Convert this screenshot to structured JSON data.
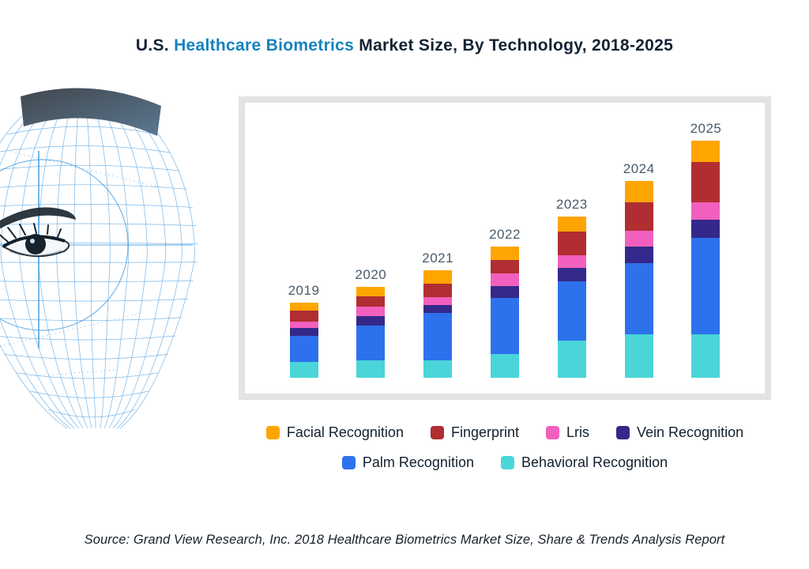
{
  "title": {
    "prefix": "U.S. ",
    "highlight": "Healthcare Biometrics",
    "suffix": " Market Size, By Technology, 2018-2025"
  },
  "source": {
    "text": "Source: Grand View Research, Inc. 2018 Healthcare Biometrics Market Size, Share & Trends Analysis Report"
  },
  "illustration": {
    "name": "biometric-face-wireframe",
    "band_color_left": "#40474E",
    "band_color_right": "#5B7891",
    "mesh_color": "#55A4E4",
    "scan_color": "#3D9BE0"
  },
  "colors": {
    "title_accent": "#1583BD",
    "title_text": "#132234",
    "year_label": "#4A5A6B",
    "panel_border": "#E3E3E3",
    "facial_recognition": "#FFA502",
    "fingerprint": "#B02E31",
    "lris": "#F160BE",
    "vein_recognition": "#34298A",
    "palm_recognition": "#2D72EC",
    "behavioral_recognition": "#4AD5D8"
  },
  "legend": {
    "rows": [
      [
        {
          "label": "Facial Recognition",
          "color": "#FFA502"
        },
        {
          "label": "Fingerprint",
          "color": "#B02E31"
        },
        {
          "label": "Lris",
          "color": "#F160BE"
        },
        {
          "label": "Vein Recognition",
          "color": "#34298A"
        }
      ],
      [
        {
          "label": "Palm Recognition",
          "color": "#2D72EC"
        },
        {
          "label": "Behavioral Recognition",
          "color": "#4AD5D8"
        }
      ]
    ]
  },
  "chart_data": {
    "type": "bar",
    "stacked": true,
    "title": "U.S. Healthcare Biometrics Market Size, By Technology, 2018-2025",
    "categories": [
      "2019",
      "2020",
      "2021",
      "2022",
      "2023",
      "2024",
      "2025"
    ],
    "units": "relative units (chart displays no value axis; values estimated from bar segment heights, 1 unit = 1 px)",
    "xlabel": "",
    "ylabel": "",
    "grid": false,
    "legend_position": "bottom",
    "series": [
      {
        "name": "Behavioral Recognition",
        "color": "#4AD5D8",
        "values": [
          20,
          22,
          22,
          30,
          47,
          55,
          55
        ]
      },
      {
        "name": "Palm Recognition",
        "color": "#2D72EC",
        "values": [
          33,
          44,
          60,
          71,
          75,
          90,
          122
        ]
      },
      {
        "name": "Vein Recognition",
        "color": "#34298A",
        "values": [
          10,
          12,
          10,
          15,
          17,
          21,
          23
        ]
      },
      {
        "name": "Lris",
        "color": "#F160BE",
        "values": [
          8,
          12,
          10,
          16,
          16,
          20,
          22
        ]
      },
      {
        "name": "Fingerprint",
        "color": "#B02E31",
        "values": [
          14,
          13,
          17,
          17,
          30,
          36,
          51
        ]
      },
      {
        "name": "Facial Recognition",
        "color": "#FFA502",
        "values": [
          10,
          12,
          17,
          17,
          19,
          27,
          27
        ]
      }
    ],
    "totals": [
      95,
      115,
      136,
      166,
      204,
      249,
      300
    ]
  }
}
